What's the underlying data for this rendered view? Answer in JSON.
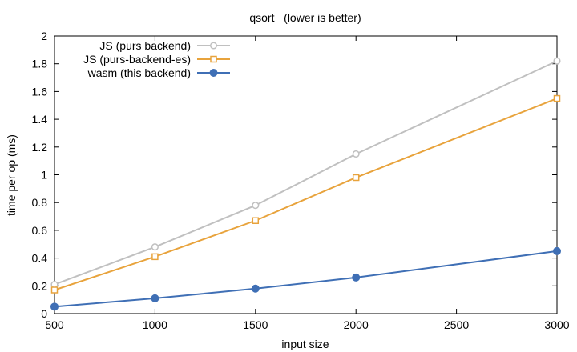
{
  "chart_data": {
    "type": "line",
    "title": "qsort   (lower is better)",
    "xlabel": "input size",
    "ylabel": "time per op (ms)",
    "xlim": [
      500,
      3000
    ],
    "ylim": [
      0,
      2
    ],
    "xticks": [
      500,
      1000,
      1500,
      2000,
      2500,
      3000
    ],
    "xtick_labels": [
      "500",
      "1000",
      "1500",
      "2000",
      "2500",
      "3000"
    ],
    "yticks": [
      0,
      0.2,
      0.4,
      0.6,
      0.8,
      1,
      1.2,
      1.4,
      1.6,
      1.8,
      2
    ],
    "ytick_labels": [
      "0",
      "0.2",
      "0.4",
      "0.6",
      "0.8",
      "1",
      "1.2",
      "1.4",
      "1.6",
      "1.8",
      "2"
    ],
    "grid": false,
    "legend_position": "top-left",
    "series": [
      {
        "name": "JS (purs backend)",
        "color": "#c0c0c0",
        "marker": "open-circle",
        "x": [
          500,
          1000,
          1500,
          2000,
          3000
        ],
        "y": [
          0.21,
          0.48,
          0.78,
          1.15,
          1.82
        ]
      },
      {
        "name": "JS (purs-backend-es)",
        "color": "#e8a33c",
        "marker": "open-square",
        "x": [
          500,
          1000,
          1500,
          2000,
          3000
        ],
        "y": [
          0.17,
          0.41,
          0.67,
          0.98,
          1.55
        ]
      },
      {
        "name": "wasm (this backend)",
        "color": "#3f6fb5",
        "marker": "filled-circle",
        "x": [
          500,
          1000,
          1500,
          2000,
          3000
        ],
        "y": [
          0.05,
          0.11,
          0.18,
          0.26,
          0.45
        ]
      }
    ]
  }
}
